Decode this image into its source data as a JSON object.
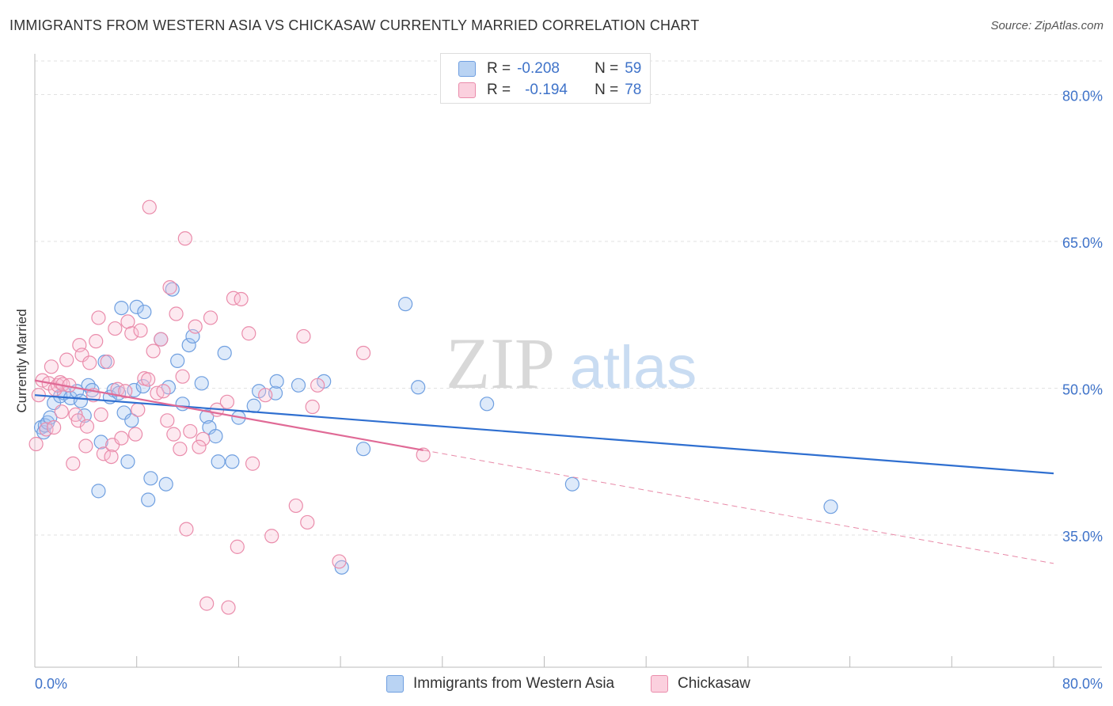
{
  "title": "IMMIGRANTS FROM WESTERN ASIA VS CHICKASAW CURRENTLY MARRIED CORRELATION CHART",
  "source": "Source: ZipAtlas.com",
  "watermark": {
    "zip": "ZIP",
    "atlas": "atlas"
  },
  "legend": {
    "r_label": "R =",
    "n_label": "N =",
    "rows": [
      {
        "r": "-0.208",
        "n": "59",
        "color": "#a8c8f0",
        "border": "#5b8ed8"
      },
      {
        "r": "-0.194",
        "n": "78",
        "color": "#f9c0d3",
        "border": "#e88aa8"
      }
    ]
  },
  "bottom_legend": {
    "series1": "Immigrants from Western Asia",
    "series2": "Chickasaw"
  },
  "chart_data": {
    "type": "scatter",
    "title": "IMMIGRANTS FROM WESTERN ASIA VS CHICKASAW CURRENTLY MARRIED CORRELATION CHART",
    "xlabel": "",
    "ylabel": "Currently Married",
    "xlim": [
      0,
      80
    ],
    "ylim": [
      21.5,
      84
    ],
    "x_tick_labels": [
      "0.0%",
      "80.0%"
    ],
    "y_ticks": [
      35,
      50,
      65,
      80
    ],
    "y_tick_labels": [
      "35.0%",
      "50.0%",
      "65.0%",
      "80.0%"
    ],
    "grid": true,
    "legend_position": "top-center",
    "series": [
      {
        "name": "Immigrants from Western Asia",
        "color": "#6f9fe0",
        "fill": "rgba(160,196,240,0.35)",
        "trend": {
          "x0": 0,
          "y0": 49.3,
          "x1": 80,
          "y1": 41.3,
          "dashed_after": null
        },
        "points": [
          [
            0.5,
            46
          ],
          [
            0.7,
            45.5
          ],
          [
            0.8,
            46.2
          ],
          [
            1,
            46.5
          ],
          [
            1.2,
            47
          ],
          [
            1.5,
            48.5
          ],
          [
            2,
            49.2
          ],
          [
            2.3,
            49.5
          ],
          [
            2.8,
            49
          ],
          [
            3.3,
            49.7
          ],
          [
            3.6,
            48.7
          ],
          [
            3.9,
            47.2
          ],
          [
            4.2,
            50.3
          ],
          [
            4.5,
            49.8
          ],
          [
            5,
            39.5
          ],
          [
            5.2,
            44.5
          ],
          [
            5.5,
            52.7
          ],
          [
            5.9,
            49.1
          ],
          [
            6.2,
            49.8
          ],
          [
            6.6,
            49.5
          ],
          [
            6.8,
            58.2
          ],
          [
            7,
            47.5
          ],
          [
            7.3,
            42.5
          ],
          [
            7.6,
            46.7
          ],
          [
            7.8,
            49.8
          ],
          [
            8,
            58.3
          ],
          [
            8.5,
            50.2
          ],
          [
            8.6,
            57.8
          ],
          [
            8.9,
            38.6
          ],
          [
            9.1,
            40.8
          ],
          [
            9.9,
            55
          ],
          [
            10.3,
            40.2
          ],
          [
            10.5,
            50.1
          ],
          [
            10.8,
            60.1
          ],
          [
            11.2,
            52.8
          ],
          [
            11.6,
            48.4
          ],
          [
            12.1,
            54.4
          ],
          [
            12.4,
            55.3
          ],
          [
            13.1,
            50.5
          ],
          [
            13.5,
            47.1
          ],
          [
            13.7,
            46
          ],
          [
            14.2,
            45.1
          ],
          [
            14.4,
            42.5
          ],
          [
            14.9,
            53.6
          ],
          [
            15.5,
            42.5
          ],
          [
            16,
            47
          ],
          [
            17.2,
            48.2
          ],
          [
            17.6,
            49.7
          ],
          [
            18.9,
            49.5
          ],
          [
            19,
            50.7
          ],
          [
            20.7,
            50.3
          ],
          [
            22.7,
            50.7
          ],
          [
            24.1,
            31.7
          ],
          [
            25.8,
            43.8
          ],
          [
            29.1,
            58.6
          ],
          [
            30.1,
            50.1
          ],
          [
            35.5,
            48.4
          ],
          [
            42.2,
            40.2
          ],
          [
            62.5,
            37.9
          ]
        ]
      },
      {
        "name": "Chickasaw",
        "color": "#ea8cab",
        "fill": "rgba(249,192,211,0.35)",
        "trend": {
          "x0": 0,
          "y0": 50.8,
          "x1": 80,
          "y1": 32.1,
          "solid_until": 30.5
        },
        "points": [
          [
            0.1,
            44.3
          ],
          [
            0.3,
            49.3
          ],
          [
            0.6,
            50.8
          ],
          [
            0.9,
            45.8
          ],
          [
            1.1,
            50.5
          ],
          [
            1.3,
            52.2
          ],
          [
            1.6,
            49.9
          ],
          [
            1.8,
            50.3
          ],
          [
            2,
            50.6
          ],
          [
            2.2,
            50.4
          ],
          [
            2.5,
            52.9
          ],
          [
            2.7,
            50.3
          ],
          [
            3,
            42.3
          ],
          [
            3.2,
            47.3
          ],
          [
            3.4,
            46.7
          ],
          [
            3.5,
            54.4
          ],
          [
            3.7,
            53.4
          ],
          [
            4,
            44.1
          ],
          [
            4.3,
            52.6
          ],
          [
            4.6,
            49.3
          ],
          [
            4.8,
            54.8
          ],
          [
            5,
            57.2
          ],
          [
            5.2,
            47.3
          ],
          [
            5.4,
            43.3
          ],
          [
            5.7,
            52.7
          ],
          [
            6.1,
            44.2
          ],
          [
            6.3,
            56.1
          ],
          [
            6.5,
            49.9
          ],
          [
            6.8,
            44.9
          ],
          [
            7.1,
            49.7
          ],
          [
            7.3,
            56.8
          ],
          [
            7.6,
            55.6
          ],
          [
            7.9,
            45.3
          ],
          [
            8.1,
            47.8
          ],
          [
            8.3,
            55.9
          ],
          [
            8.6,
            51
          ],
          [
            8.9,
            50.9
          ],
          [
            9,
            68.5
          ],
          [
            9.3,
            53.8
          ],
          [
            9.6,
            49.5
          ],
          [
            9.9,
            55
          ],
          [
            10.1,
            49.7
          ],
          [
            10.4,
            46.7
          ],
          [
            10.6,
            60.3
          ],
          [
            10.9,
            45.3
          ],
          [
            11.1,
            57.6
          ],
          [
            11.4,
            43.8
          ],
          [
            11.6,
            51.2
          ],
          [
            11.8,
            65.3
          ],
          [
            11.9,
            35.6
          ],
          [
            12.2,
            45.6
          ],
          [
            12.6,
            56.3
          ],
          [
            13.2,
            44.8
          ],
          [
            13.5,
            28
          ],
          [
            13.8,
            57.2
          ],
          [
            14.3,
            47.8
          ],
          [
            15.1,
            48.6
          ],
          [
            15.2,
            27.6
          ],
          [
            15.6,
            59.2
          ],
          [
            15.9,
            33.8
          ],
          [
            16.2,
            59.1
          ],
          [
            16.8,
            55.6
          ],
          [
            17.1,
            42.3
          ],
          [
            18.1,
            49.3
          ],
          [
            18.6,
            34.9
          ],
          [
            20.5,
            38
          ],
          [
            21.1,
            55.3
          ],
          [
            21.4,
            36.3
          ],
          [
            21.8,
            48.1
          ],
          [
            22.2,
            50.3
          ],
          [
            23.9,
            32.3
          ],
          [
            25.8,
            53.6
          ],
          [
            30.5,
            43.2
          ],
          [
            2.1,
            47.6
          ],
          [
            4.1,
            46.1
          ],
          [
            6,
            43
          ],
          [
            12.9,
            44
          ],
          [
            1.5,
            46
          ]
        ]
      }
    ]
  }
}
